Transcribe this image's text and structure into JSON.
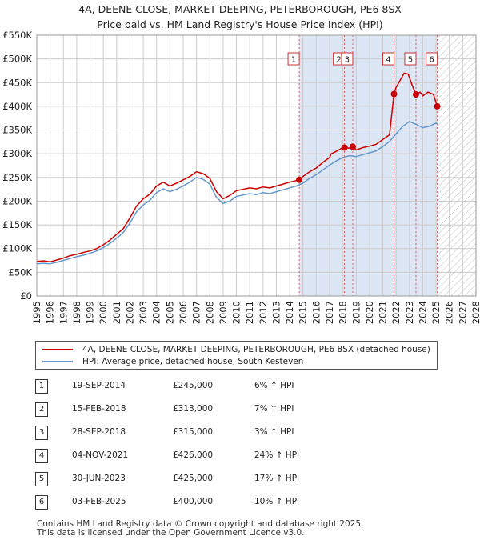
{
  "title": {
    "line1": "4A, DEENE CLOSE, MARKET DEEPING, PETERBOROUGH, PE6 8SX",
    "line2": "Price paid vs. HM Land Registry's House Price Index (HPI)"
  },
  "colors": {
    "property": "#cc0000",
    "hpi": "#6699cc",
    "shade": "#dde6f5",
    "marker_line": "#e06666"
  },
  "chart_data": {
    "type": "line",
    "title": "Price paid vs. HM Land Registry's House Price Index (HPI)",
    "xlim": [
      1995,
      2028
    ],
    "ylim": [
      0,
      550000
    ],
    "x_ticks": [
      1995,
      1996,
      1997,
      1998,
      1999,
      2000,
      2001,
      2002,
      2003,
      2004,
      2005,
      2006,
      2007,
      2008,
      2009,
      2010,
      2011,
      2012,
      2013,
      2014,
      2015,
      2016,
      2017,
      2018,
      2019,
      2020,
      2021,
      2022,
      2023,
      2024,
      2025,
      2026,
      2027,
      2028
    ],
    "y_ticks": [
      {
        "value": 0,
        "label": "£0"
      },
      {
        "value": 50000,
        "label": "£50K"
      },
      {
        "value": 100000,
        "label": "£100K"
      },
      {
        "value": 150000,
        "label": "£150K"
      },
      {
        "value": 200000,
        "label": "£200K"
      },
      {
        "value": 250000,
        "label": "£250K"
      },
      {
        "value": 300000,
        "label": "£300K"
      },
      {
        "value": 350000,
        "label": "£350K"
      },
      {
        "value": 400000,
        "label": "£400K"
      },
      {
        "value": 450000,
        "label": "£450K"
      },
      {
        "value": 500000,
        "label": "£500K"
      },
      {
        "value": 550000,
        "label": "£550K"
      }
    ],
    "shaded_span": [
      2014.72,
      2025.09
    ],
    "hatch_from": 2025.09,
    "series": [
      {
        "name": "4A, DEENE CLOSE, MARKET DEEPING, PETERBOROUGH, PE6 8SX (detached house)",
        "key": "property",
        "x": [
          1995,
          1995.5,
          1996,
          1996.5,
          1997,
          1997.5,
          1998,
          1998.5,
          1999,
          1999.5,
          2000,
          2000.5,
          2001,
          2001.5,
          2002,
          2002.5,
          2003,
          2003.5,
          2004,
          2004.5,
          2005,
          2005.5,
          2006,
          2006.5,
          2007,
          2007.5,
          2008,
          2008.5,
          2009,
          2009.5,
          2010,
          2010.5,
          2011,
          2011.5,
          2012,
          2012.5,
          2013,
          2013.5,
          2014,
          2014.72,
          2015,
          2015.5,
          2016,
          2016.5,
          2017,
          2017.12,
          2017.5,
          2018,
          2018.5,
          2018.74,
          2019,
          2019.5,
          2020,
          2020.5,
          2021,
          2021.5,
          2021.84,
          2022,
          2022.3,
          2022.6,
          2022.9,
          2023.2,
          2023.49,
          2023.8,
          2024,
          2024.4,
          2024.8,
          2025.09
        ],
        "y": [
          73000,
          74000,
          72000,
          76000,
          80000,
          85000,
          88000,
          92000,
          95000,
          100000,
          108000,
          118000,
          130000,
          142000,
          165000,
          190000,
          205000,
          215000,
          232000,
          240000,
          232000,
          238000,
          245000,
          252000,
          262000,
          258000,
          248000,
          220000,
          205000,
          212000,
          222000,
          225000,
          228000,
          226000,
          230000,
          228000,
          232000,
          236000,
          240000,
          245000,
          252000,
          262000,
          270000,
          282000,
          292000,
          300000,
          305000,
          313000,
          312000,
          315000,
          308000,
          313000,
          316000,
          320000,
          330000,
          340000,
          426000,
          440000,
          455000,
          470000,
          468000,
          445000,
          425000,
          430000,
          422000,
          430000,
          425000,
          400000
        ]
      },
      {
        "name": "HPI: Average price, detached house, South Kesteven",
        "key": "hpi",
        "x": [
          1995,
          1995.5,
          1996,
          1996.5,
          1997,
          1997.5,
          1998,
          1998.5,
          1999,
          1999.5,
          2000,
          2000.5,
          2001,
          2001.5,
          2002,
          2002.5,
          2003,
          2003.5,
          2004,
          2004.5,
          2005,
          2005.5,
          2006,
          2006.5,
          2007,
          2007.5,
          2008,
          2008.5,
          2009,
          2009.5,
          2010,
          2010.5,
          2011,
          2011.5,
          2012,
          2012.5,
          2013,
          2013.5,
          2014,
          2014.5,
          2015,
          2015.5,
          2016,
          2016.5,
          2017,
          2017.5,
          2018,
          2018.5,
          2019,
          2019.5,
          2020,
          2020.5,
          2021,
          2021.5,
          2022,
          2022.5,
          2023,
          2023.5,
          2024,
          2024.5,
          2025,
          2025.1
        ],
        "y": [
          68000,
          69000,
          68000,
          71000,
          75000,
          79000,
          83000,
          86000,
          90000,
          95000,
          102000,
          111000,
          122000,
          134000,
          154000,
          178000,
          192000,
          202000,
          218000,
          226000,
          220000,
          225000,
          232000,
          240000,
          250000,
          246000,
          236000,
          208000,
          195000,
          200000,
          210000,
          213000,
          216000,
          214000,
          218000,
          216000,
          220000,
          224000,
          228000,
          232000,
          238000,
          248000,
          256000,
          266000,
          276000,
          285000,
          292000,
          296000,
          294000,
          298000,
          302000,
          306000,
          315000,
          326000,
          342000,
          358000,
          368000,
          362000,
          355000,
          358000,
          365000,
          363000
        ]
      }
    ],
    "sales": [
      {
        "n": "1",
        "date": "19-SEP-2014",
        "x": 2014.72,
        "price": 245000,
        "price_label": "£245,000",
        "hpi": "6% ↑ HPI"
      },
      {
        "n": "2",
        "date": "15-FEB-2018",
        "x": 2018.12,
        "price": 313000,
        "price_label": "£313,000",
        "hpi": "7% ↑ HPI"
      },
      {
        "n": "3",
        "date": "28-SEP-2018",
        "x": 2018.74,
        "price": 315000,
        "price_label": "£315,000",
        "hpi": "3% ↑ HPI"
      },
      {
        "n": "4",
        "date": "04-NOV-2021",
        "x": 2021.84,
        "price": 426000,
        "price_label": "£426,000",
        "hpi": "24% ↑ HPI"
      },
      {
        "n": "5",
        "date": "30-JUN-2023",
        "x": 2023.49,
        "price": 425000,
        "price_label": "£425,000",
        "hpi": "17% ↑ HPI"
      },
      {
        "n": "6",
        "date": "03-FEB-2025",
        "x": 2025.09,
        "price": 400000,
        "price_label": "£400,000",
        "hpi": "10% ↑ HPI"
      }
    ]
  },
  "legend": {
    "property": "4A, DEENE CLOSE, MARKET DEEPING, PETERBOROUGH, PE6 8SX (detached house)",
    "hpi": "HPI: Average price, detached house, South Kesteven"
  },
  "footer": {
    "line1": "Contains HM Land Registry data © Crown copyright and database right 2025.",
    "line2": "This data is licensed under the Open Government Licence v3.0."
  }
}
